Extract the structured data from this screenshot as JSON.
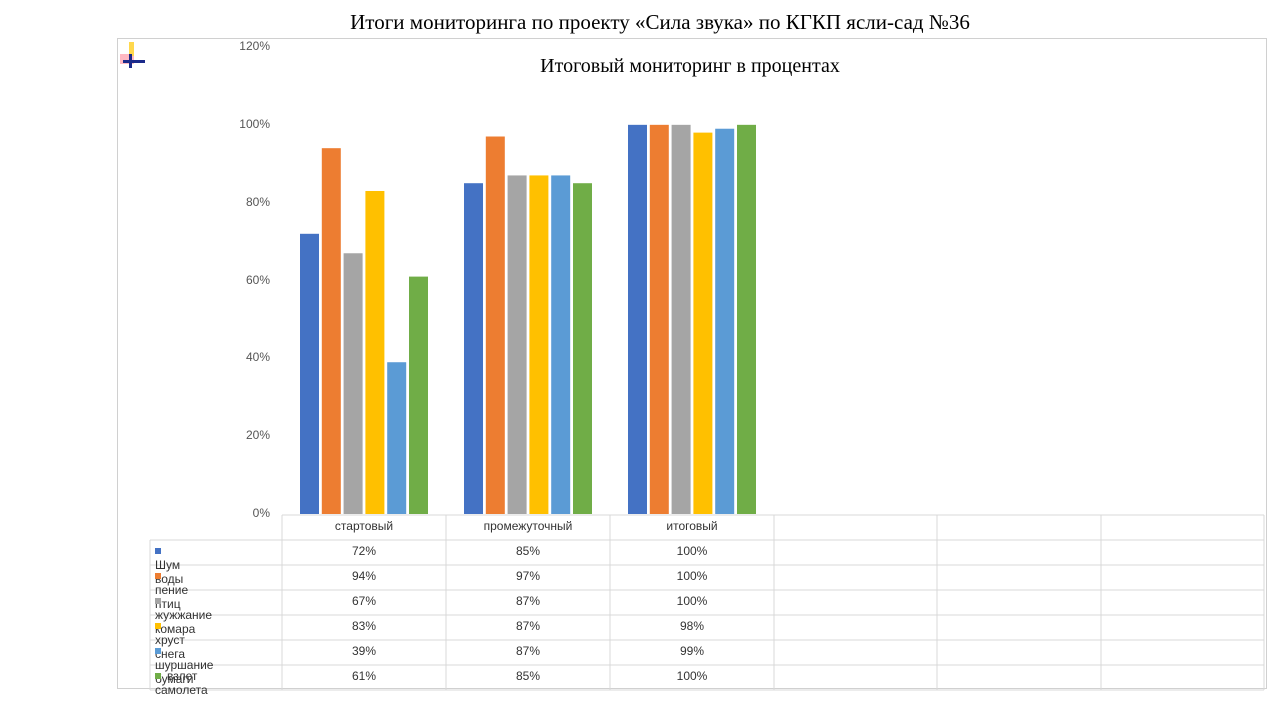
{
  "page": {
    "title": "Итоги мониторинга по проекту «Сила звука» по КГКП ясли-сад №36"
  },
  "chart_data": {
    "type": "bar",
    "title": "Итоговый мониторинг в процентах",
    "categories": [
      "стартовый",
      "промежуточный",
      "итоговый"
    ],
    "ylim": [
      0,
      120
    ],
    "yticks": [
      "0%",
      "20%",
      "40%",
      "60%",
      "80%",
      "100%",
      "120%"
    ],
    "grid": false,
    "legend": "data-table",
    "series": [
      {
        "name": "Шум воды",
        "values": [
          72,
          85,
          100
        ],
        "labels": [
          "72%",
          "85%",
          "100%"
        ],
        "color": "#4472C4"
      },
      {
        "name": "пение птиц",
        "values": [
          94,
          97,
          100
        ],
        "labels": [
          "94%",
          "97%",
          "100%"
        ],
        "color": "#ED7D31"
      },
      {
        "name": "жужжание комара",
        "values": [
          67,
          87,
          100
        ],
        "labels": [
          "67%",
          "87%",
          "100%"
        ],
        "color": "#A5A5A5"
      },
      {
        "name": "хруст снега",
        "values": [
          83,
          87,
          98
        ],
        "labels": [
          "83%",
          "87%",
          "98%"
        ],
        "color": "#FFC000"
      },
      {
        "name": "шуршание бумаги",
        "values": [
          39,
          87,
          99
        ],
        "labels": [
          "39%",
          "87%",
          "99%"
        ],
        "color": "#5B9BD5"
      },
      {
        "name": "взлет самолета",
        "values": [
          61,
          85,
          100
        ],
        "labels": [
          "61%",
          "85%",
          "100%"
        ],
        "color": "#70AD47"
      }
    ]
  }
}
